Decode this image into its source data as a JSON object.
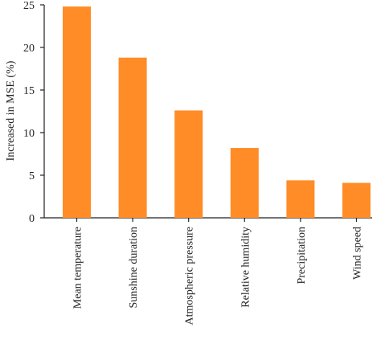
{
  "chart_data": {
    "type": "bar",
    "title": "",
    "xlabel": "",
    "ylabel": "Increased in MSE (%)",
    "categories": [
      "Mean temperature",
      "Sunshine duration",
      "Atmospheric pressure",
      "Relative humidity",
      "Precipitation",
      "Wind speed"
    ],
    "values": [
      24.8,
      18.8,
      12.6,
      8.2,
      4.4,
      4.1
    ],
    "ylim": [
      0,
      25
    ],
    "yticks": [
      0,
      5,
      10,
      15,
      20,
      25
    ],
    "grid": false,
    "bar_color": "#FF8C26"
  }
}
